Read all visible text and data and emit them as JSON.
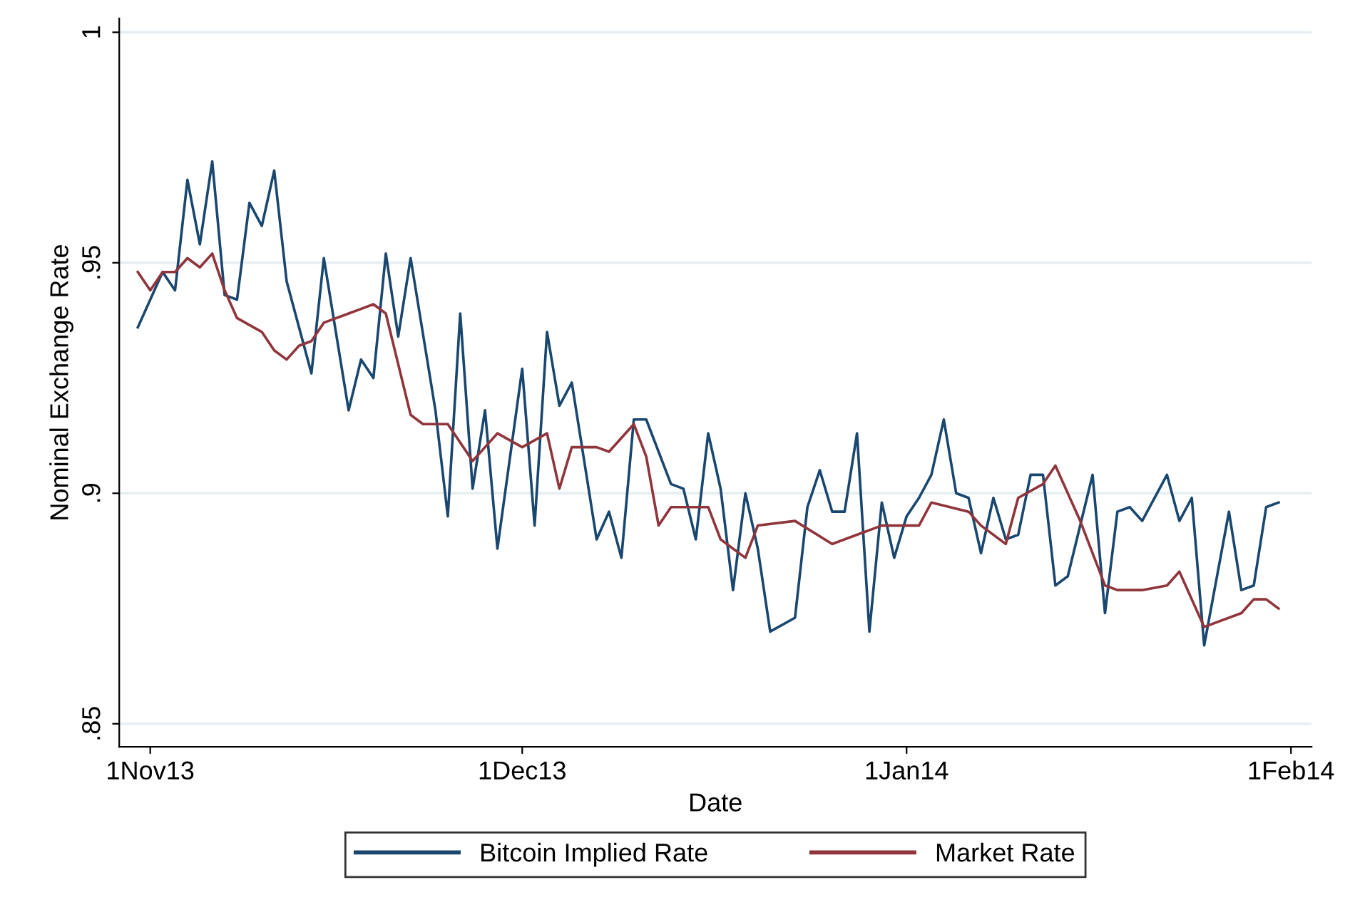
{
  "chart_data": {
    "type": "line",
    "xlabel": "Date",
    "ylabel": "Nominal Exchange Rate",
    "xlim": [
      "2013-10-29T12:00",
      "2014-02-02T16:00"
    ],
    "xticks": [
      {
        "value": "2013-11-01",
        "label": "1Nov13"
      },
      {
        "value": "2013-12-01",
        "label": "1Dec13"
      },
      {
        "value": "2014-01-01",
        "label": "1Jan14"
      },
      {
        "value": "2014-02-01",
        "label": "1Feb14"
      }
    ],
    "ylim": [
      0.845,
      1.003
    ],
    "yticks": [
      {
        "value": 0.85,
        "label": ".85"
      },
      {
        "value": 0.9,
        "label": ".9"
      },
      {
        "value": 0.95,
        "label": ".95"
      },
      {
        "value": 1,
        "label": "1"
      }
    ],
    "grid": "y",
    "legend": "bottom",
    "line_style": "solid",
    "marker": "none",
    "series": [
      {
        "name": "Bitcoin Implied Rate",
        "color": "#1a476f",
        "x": [
          "2013-10-31",
          "2013-11-02",
          "2013-11-03",
          "2013-11-04",
          "2013-11-05",
          "2013-11-06",
          "2013-11-07",
          "2013-11-08",
          "2013-11-09",
          "2013-11-10",
          "2013-11-11",
          "2013-11-12",
          "2013-11-14",
          "2013-11-15",
          "2013-11-17",
          "2013-11-18",
          "2013-11-19",
          "2013-11-20",
          "2013-11-21",
          "2013-11-22",
          "2013-11-24",
          "2013-11-25",
          "2013-11-26",
          "2013-11-27",
          "2013-11-28",
          "2013-11-29",
          "2013-12-01",
          "2013-12-02",
          "2013-12-03",
          "2013-12-04",
          "2013-12-05",
          "2013-12-07",
          "2013-12-08",
          "2013-12-09",
          "2013-12-10",
          "2013-12-11",
          "2013-12-13",
          "2013-12-14",
          "2013-12-15",
          "2013-12-16",
          "2013-12-17",
          "2013-12-18",
          "2013-12-19",
          "2013-12-20",
          "2013-12-21",
          "2013-12-23",
          "2013-12-24",
          "2013-12-25",
          "2013-12-26",
          "2013-12-27",
          "2013-12-28",
          "2013-12-29",
          "2013-12-30",
          "2013-12-31",
          "2014-01-01",
          "2014-01-02",
          "2014-01-03",
          "2014-01-04",
          "2014-01-05",
          "2014-01-06",
          "2014-01-07",
          "2014-01-08",
          "2014-01-09",
          "2014-01-10",
          "2014-01-11",
          "2014-01-12",
          "2014-01-13",
          "2014-01-14",
          "2014-01-16",
          "2014-01-17",
          "2014-01-18",
          "2014-01-19",
          "2014-01-20",
          "2014-01-22",
          "2014-01-23",
          "2014-01-24",
          "2014-01-25",
          "2014-01-27",
          "2014-01-28",
          "2014-01-29",
          "2014-01-30",
          "2014-01-31"
        ],
        "values": [
          0.936,
          0.948,
          0.944,
          0.968,
          0.954,
          0.972,
          0.943,
          0.942,
          0.963,
          0.958,
          0.97,
          0.946,
          0.926,
          0.951,
          0.918,
          0.929,
          0.925,
          0.952,
          0.934,
          0.951,
          0.918,
          0.895,
          0.939,
          0.901,
          0.918,
          0.888,
          0.927,
          0.893,
          0.935,
          0.919,
          0.924,
          0.89,
          0.896,
          0.886,
          0.916,
          0.916,
          0.902,
          0.901,
          0.89,
          0.913,
          0.901,
          0.879,
          0.9,
          0.888,
          0.87,
          0.873,
          0.897,
          0.905,
          0.896,
          0.896,
          0.913,
          0.87,
          0.898,
          0.886,
          0.895,
          0.899,
          0.904,
          0.916,
          0.9,
          0.899,
          0.887,
          0.899,
          0.89,
          0.891,
          0.904,
          0.904,
          0.88,
          0.882,
          0.904,
          0.874,
          0.896,
          0.897,
          0.894,
          0.904,
          0.894,
          0.899,
          0.867,
          0.896,
          0.879,
          0.88,
          0.897,
          0.898
        ]
      },
      {
        "name": "Market Rate",
        "color": "#90353b",
        "x": [
          "2013-10-31",
          "2013-11-01",
          "2013-11-02",
          "2013-11-03",
          "2013-11-04",
          "2013-11-05",
          "2013-11-06",
          "2013-11-07",
          "2013-11-08",
          "2013-11-10",
          "2013-11-11",
          "2013-11-12",
          "2013-11-13",
          "2013-11-14",
          "2013-11-15",
          "2013-11-17",
          "2013-11-19",
          "2013-11-20",
          "2013-11-22",
          "2013-11-23",
          "2013-11-25",
          "2013-11-27",
          "2013-11-28",
          "2013-11-29",
          "2013-12-01",
          "2013-12-03",
          "2013-12-04",
          "2013-12-05",
          "2013-12-07",
          "2013-12-08",
          "2013-12-10",
          "2013-12-11",
          "2013-12-12",
          "2013-12-13",
          "2013-12-16",
          "2013-12-17",
          "2013-12-19",
          "2013-12-20",
          "2013-12-23",
          "2013-12-26",
          "2013-12-28",
          "2013-12-30",
          "2014-01-01",
          "2014-01-02",
          "2014-01-03",
          "2014-01-06",
          "2014-01-07",
          "2014-01-09",
          "2014-01-10",
          "2014-01-12",
          "2014-01-13",
          "2014-01-15",
          "2014-01-17",
          "2014-01-18",
          "2014-01-20",
          "2014-01-22",
          "2014-01-23",
          "2014-01-25",
          "2014-01-28",
          "2014-01-29",
          "2014-01-30",
          "2014-01-31"
        ],
        "values": [
          0.948,
          0.944,
          0.948,
          0.948,
          0.951,
          0.949,
          0.952,
          0.944,
          0.938,
          0.935,
          0.931,
          0.929,
          0.932,
          0.933,
          0.937,
          0.939,
          0.941,
          0.939,
          0.917,
          0.915,
          0.915,
          0.907,
          0.91,
          0.913,
          0.91,
          0.913,
          0.901,
          0.91,
          0.91,
          0.909,
          0.915,
          0.908,
          0.893,
          0.897,
          0.897,
          0.89,
          0.886,
          0.893,
          0.894,
          0.889,
          0.891,
          0.893,
          0.893,
          0.893,
          0.898,
          0.896,
          0.893,
          0.889,
          0.899,
          0.902,
          0.906,
          0.894,
          0.88,
          0.879,
          0.879,
          0.88,
          0.883,
          0.871,
          0.874,
          0.877,
          0.877,
          0.875
        ]
      }
    ]
  }
}
